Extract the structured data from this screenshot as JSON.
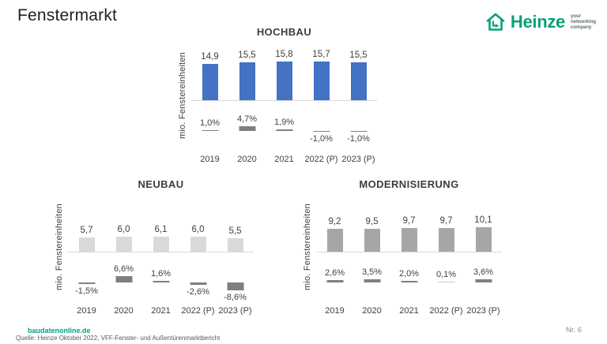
{
  "page": {
    "title": "Fenstermarkt",
    "page_number": "Nr. 6"
  },
  "logo": {
    "brand": "Heinze",
    "tagline": [
      "your",
      "networking",
      "company"
    ],
    "brand_color": "#0aa078"
  },
  "footer": {
    "brand_link": "baudatenonline.de",
    "source": "Quelle: Heinze Oktober 2022, VFF-Fenster- und Außentürenmarktbericht"
  },
  "colors": {
    "hochbau_bar": "#4472c4",
    "neubau_bar": "#d9d9d9",
    "modernisierung_bar": "#a6a6a6",
    "pct_bar": "#7f7f7f",
    "pct_bar_faint": "#c9c9c9",
    "axis_line": "#d9d9d9"
  },
  "chart_data": [
    {
      "type": "bar",
      "title": "HOCHBAU",
      "ylabel": "mio. Fenstereinheiten",
      "categories": [
        "2019",
        "2020",
        "2021",
        "2022 (P)",
        "2023 (P)"
      ],
      "values": [
        14.9,
        15.5,
        15.8,
        15.7,
        15.5
      ],
      "value_labels": [
        "14,9",
        "15,5",
        "15,8",
        "15,7",
        "15,5"
      ],
      "pct_change": [
        1.0,
        4.7,
        1.9,
        -1.0,
        -1.0
      ],
      "pct_labels": [
        "1,0%",
        "4,7%",
        "1,9%",
        "-1,0%",
        "-1,0%"
      ],
      "bar_color": "#4472c4",
      "ylim": [
        0,
        16
      ],
      "grid": false,
      "legend": false
    },
    {
      "type": "bar",
      "title": "NEUBAU",
      "ylabel": "mio. Fenstereinheiten",
      "categories": [
        "2019",
        "2020",
        "2021",
        "2022 (P)",
        "2023 (P)"
      ],
      "values": [
        5.7,
        6.0,
        6.1,
        6.0,
        5.5
      ],
      "value_labels": [
        "5,7",
        "6,0",
        "6,1",
        "6,0",
        "5,5"
      ],
      "pct_change": [
        -1.5,
        6.6,
        1.6,
        -2.6,
        -8.6
      ],
      "pct_labels": [
        "-1,5%",
        "6,6%",
        "1,6%",
        "-2,6%",
        "-8,6%"
      ],
      "bar_color": "#d9d9d9",
      "ylim": [
        0,
        16
      ],
      "grid": false,
      "legend": false
    },
    {
      "type": "bar",
      "title": "MODERNISIERUNG",
      "ylabel": "mio. Fenstereinheiten",
      "categories": [
        "2019",
        "2020",
        "2021",
        "2022 (P)",
        "2023 (P)"
      ],
      "values": [
        9.2,
        9.5,
        9.7,
        9.7,
        10.1
      ],
      "value_labels": [
        "9,2",
        "9,5",
        "9,7",
        "9,7",
        "10,1"
      ],
      "pct_change": [
        2.6,
        3.5,
        2.0,
        0.1,
        3.6
      ],
      "pct_labels": [
        "2,6%",
        "3,5%",
        "2,0%",
        "0,1%",
        "3,6%"
      ],
      "bar_color": "#a6a6a6",
      "ylim": [
        0,
        16
      ],
      "grid": false,
      "legend": false
    }
  ]
}
